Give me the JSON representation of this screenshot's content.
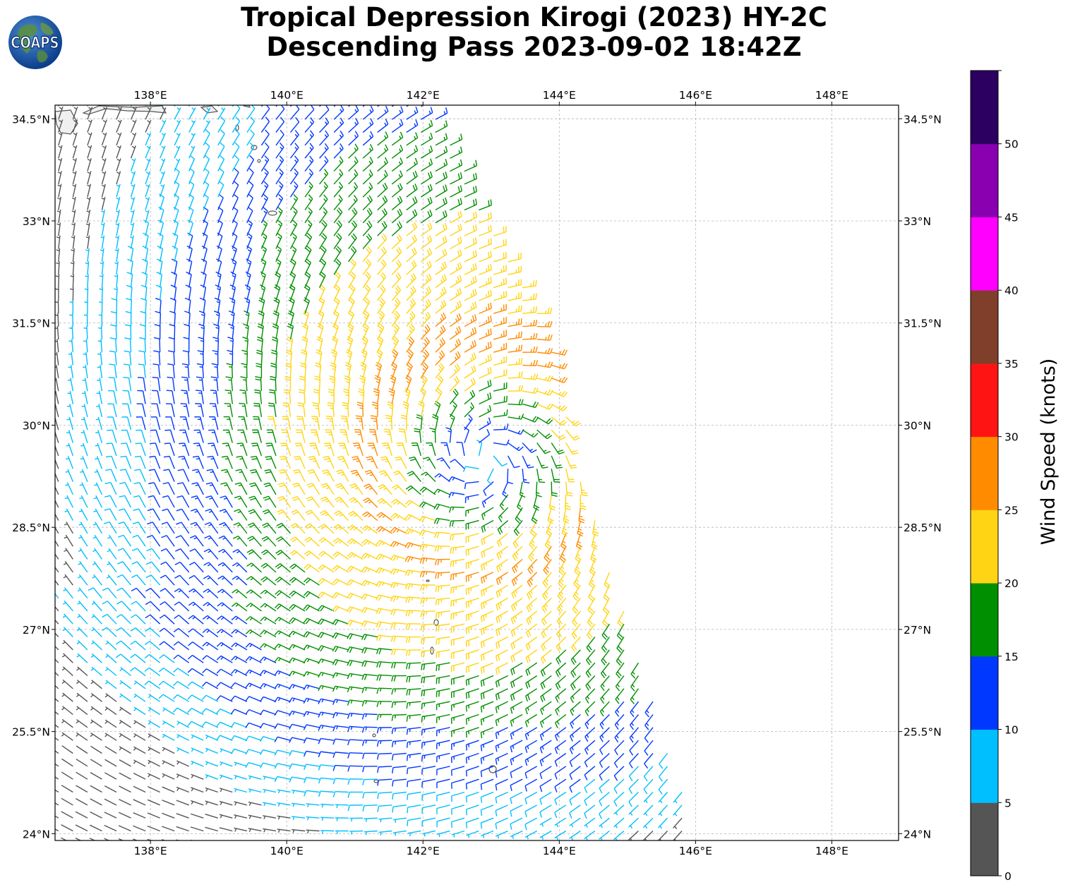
{
  "title": {
    "line1": "Tropical Depression Kirogi (2023) HY-2C",
    "line2": "Descending Pass 2023-09-02 18:42Z"
  },
  "logo": {
    "text": "COAPS",
    "icon": "globe-icon"
  },
  "map": {
    "lon_range": [
      136.6,
      148.98
    ],
    "lat_range": [
      23.9,
      34.7
    ],
    "lon_ticks": [
      138,
      140,
      142,
      144,
      146,
      148
    ],
    "lat_ticks": [
      24,
      25.5,
      27,
      28.5,
      30,
      31.5,
      33,
      34.5
    ],
    "lon_tick_labels": [
      "138°E",
      "140°E",
      "142°E",
      "144°E",
      "146°E",
      "148°E"
    ],
    "lat_tick_labels": [
      "24°N",
      "25.5°N",
      "27°N",
      "28.5°N",
      "30°N",
      "31.5°N",
      "33°N",
      "34.5°N"
    ],
    "grid": true,
    "coastline_color": "#555555"
  },
  "storm": {
    "center_lon": 142.9,
    "center_lat": 29.5
  },
  "swath": {
    "west_edge_lon": 136.6,
    "east_edge": [
      [
        142.1,
        34.7
      ],
      [
        143.8,
        31.5
      ],
      [
        144.3,
        29.3
      ],
      [
        146.0,
        24.0
      ]
    ]
  },
  "colorbar": {
    "label": "Wind Speed (knots)",
    "ticks": [
      0,
      5,
      10,
      15,
      20,
      25,
      30,
      35,
      40,
      45,
      50
    ],
    "bins": [
      {
        "min": 0,
        "max": 5,
        "color": "#555555"
      },
      {
        "min": 5,
        "max": 10,
        "color": "#00bfff"
      },
      {
        "min": 10,
        "max": 15,
        "color": "#0038ff"
      },
      {
        "min": 15,
        "max": 20,
        "color": "#008f00"
      },
      {
        "min": 20,
        "max": 25,
        "color": "#ffd414"
      },
      {
        "min": 25,
        "max": 30,
        "color": "#ff8c00"
      },
      {
        "min": 30,
        "max": 35,
        "color": "#ff1414"
      },
      {
        "min": 35,
        "max": 40,
        "color": "#7f3f2a"
      },
      {
        "min": 40,
        "max": 45,
        "color": "#ff00ff"
      },
      {
        "min": 45,
        "max": 50,
        "color": "#8a00b0"
      },
      {
        "min": 50,
        "max": 55,
        "color": "#2b0060"
      }
    ]
  }
}
